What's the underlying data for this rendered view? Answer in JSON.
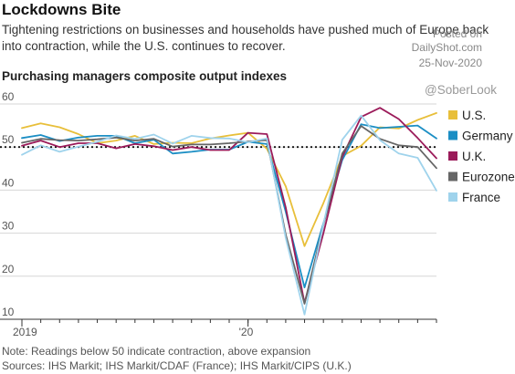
{
  "header": {
    "title": "Lockdowns Bite",
    "subtitle": "Tightening restrictions on businesses and households have pushed much of Europe back into contraction, while the U.S. continues to recover.",
    "chart_heading": "Purchasing managers composite output indexes"
  },
  "stamp": {
    "line1": "Posted on",
    "line2": "DailyShot.com",
    "line3": "25-Nov-2020"
  },
  "watermark": "@SoberLook",
  "footer": {
    "note": "Note: Readings below 50 indicate contraction, above expansion",
    "sources": "Sources: IHS Markit; IHS Markit/CDAF (France); IHS Markit/CIPS (U.K.)"
  },
  "colors": {
    "U.S.": "#e8bf3a",
    "Germany": "#1b8ec4",
    "U.K.": "#9b1b5a",
    "Eurozone": "#666666",
    "France": "#9fd3ec",
    "reference_line": "#111111",
    "grid": "#d6d6d6"
  },
  "chart_data": {
    "type": "line",
    "x": [
      "2019-01",
      "2019-02",
      "2019-03",
      "2019-04",
      "2019-05",
      "2019-06",
      "2019-07",
      "2019-08",
      "2019-09",
      "2019-10",
      "2019-11",
      "2019-12",
      "2020-01",
      "2020-02",
      "2020-03",
      "2020-04",
      "2020-05",
      "2020-06",
      "2020-07",
      "2020-08",
      "2020-09",
      "2020-10",
      "2020-11"
    ],
    "x_tick_labels": [
      {
        "x": "2019-01",
        "label": "2019"
      },
      {
        "x": "2020-01",
        "label": "'20"
      }
    ],
    "ylim": [
      10,
      60
    ],
    "y_ticks": [
      10,
      20,
      30,
      40,
      50,
      60
    ],
    "grid": true,
    "reference_line": 50,
    "legend_position": "right",
    "series": [
      {
        "name": "U.S.",
        "values": [
          54.4,
          55.5,
          54.6,
          53.0,
          50.9,
          51.5,
          52.6,
          50.7,
          51.0,
          50.9,
          52.0,
          52.7,
          53.3,
          49.6,
          40.9,
          27.0,
          37.0,
          47.9,
          50.3,
          54.6,
          54.3,
          56.3,
          57.9
        ]
      },
      {
        "name": "Germany",
        "values": [
          52.1,
          52.8,
          51.4,
          52.2,
          52.6,
          52.6,
          50.9,
          51.7,
          48.5,
          48.9,
          49.4,
          49.4,
          51.2,
          50.7,
          35.0,
          17.4,
          32.3,
          47.0,
          55.3,
          54.4,
          54.7,
          55.0,
          52.0
        ]
      },
      {
        "name": "U.K.",
        "values": [
          50.3,
          51.5,
          50.0,
          50.9,
          50.9,
          49.7,
          50.7,
          50.2,
          49.3,
          50.0,
          49.3,
          49.3,
          53.3,
          53.0,
          36.0,
          13.8,
          30.0,
          47.7,
          57.0,
          59.1,
          56.5,
          52.1,
          47.4
        ]
      },
      {
        "name": "Eurozone",
        "values": [
          51.0,
          51.9,
          51.6,
          51.5,
          51.8,
          52.2,
          51.5,
          51.9,
          50.1,
          50.6,
          50.6,
          50.9,
          51.3,
          51.6,
          29.7,
          13.6,
          31.9,
          48.5,
          54.9,
          51.9,
          50.4,
          50.0,
          45.1
        ]
      },
      {
        "name": "France",
        "values": [
          48.2,
          50.4,
          48.9,
          50.1,
          51.2,
          52.7,
          51.9,
          52.9,
          50.8,
          52.6,
          52.1,
          52.0,
          51.1,
          52.0,
          28.9,
          11.1,
          32.1,
          51.7,
          57.3,
          51.6,
          48.5,
          47.5,
          39.9
        ]
      }
    ]
  }
}
